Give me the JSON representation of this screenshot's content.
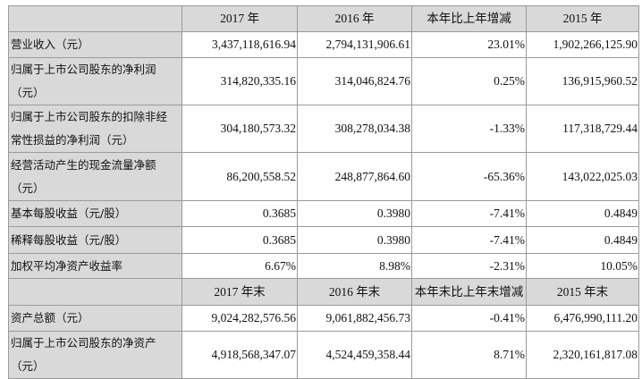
{
  "header1": [
    "",
    "2017 年",
    "2016 年",
    "本年比上年增减",
    "2015 年"
  ],
  "rows1": [
    {
      "label": [
        "营业收入（元）"
      ],
      "values": [
        "3,437,118,616.94",
        "2,794,131,906.61",
        "23.01%",
        "1,902,266,125.90"
      ]
    },
    {
      "label": [
        "归属于上市公司股东的净利润",
        "（元）"
      ],
      "values": [
        "314,820,335.16",
        "314,046,824.76",
        "0.25%",
        "136,915,960.52"
      ]
    },
    {
      "label": [
        "归属于上市公司股东的扣除非经",
        "常性损益的净利润（元）"
      ],
      "values": [
        "304,180,573.32",
        "308,278,034.38",
        "-1.33%",
        "117,318,729.44"
      ]
    },
    {
      "label": [
        "经营活动产生的现金流量净额",
        "（元）"
      ],
      "values": [
        "86,200,558.52",
        "248,877,864.60",
        "-65.36%",
        "143,022,025.03"
      ]
    },
    {
      "label": [
        "基本每股收益（元/股）"
      ],
      "values": [
        "0.3685",
        "0.3980",
        "-7.41%",
        "0.4849"
      ]
    },
    {
      "label": [
        "稀释每股收益（元/股）"
      ],
      "values": [
        "0.3685",
        "0.3980",
        "-7.41%",
        "0.4849"
      ]
    },
    {
      "label": [
        "加权平均净资产收益率"
      ],
      "values": [
        "6.67%",
        "8.98%",
        "-2.31%",
        "10.05%"
      ]
    }
  ],
  "header2": [
    "",
    "2017 年末",
    "2016 年末",
    "本年末比上年末增减",
    "2015 年末"
  ],
  "rows2": [
    {
      "label": [
        "资产总额（元）"
      ],
      "values": [
        "9,024,282,576.56",
        "9,061,882,456.73",
        "-0.41%",
        "6,476,990,111.20"
      ]
    },
    {
      "label": [
        "归属于上市公司股东的净资产",
        "（元）"
      ],
      "values": [
        "4,918,568,347.07",
        "4,524,459,358.44",
        "8.71%",
        "2,320,161,817.08"
      ]
    }
  ]
}
